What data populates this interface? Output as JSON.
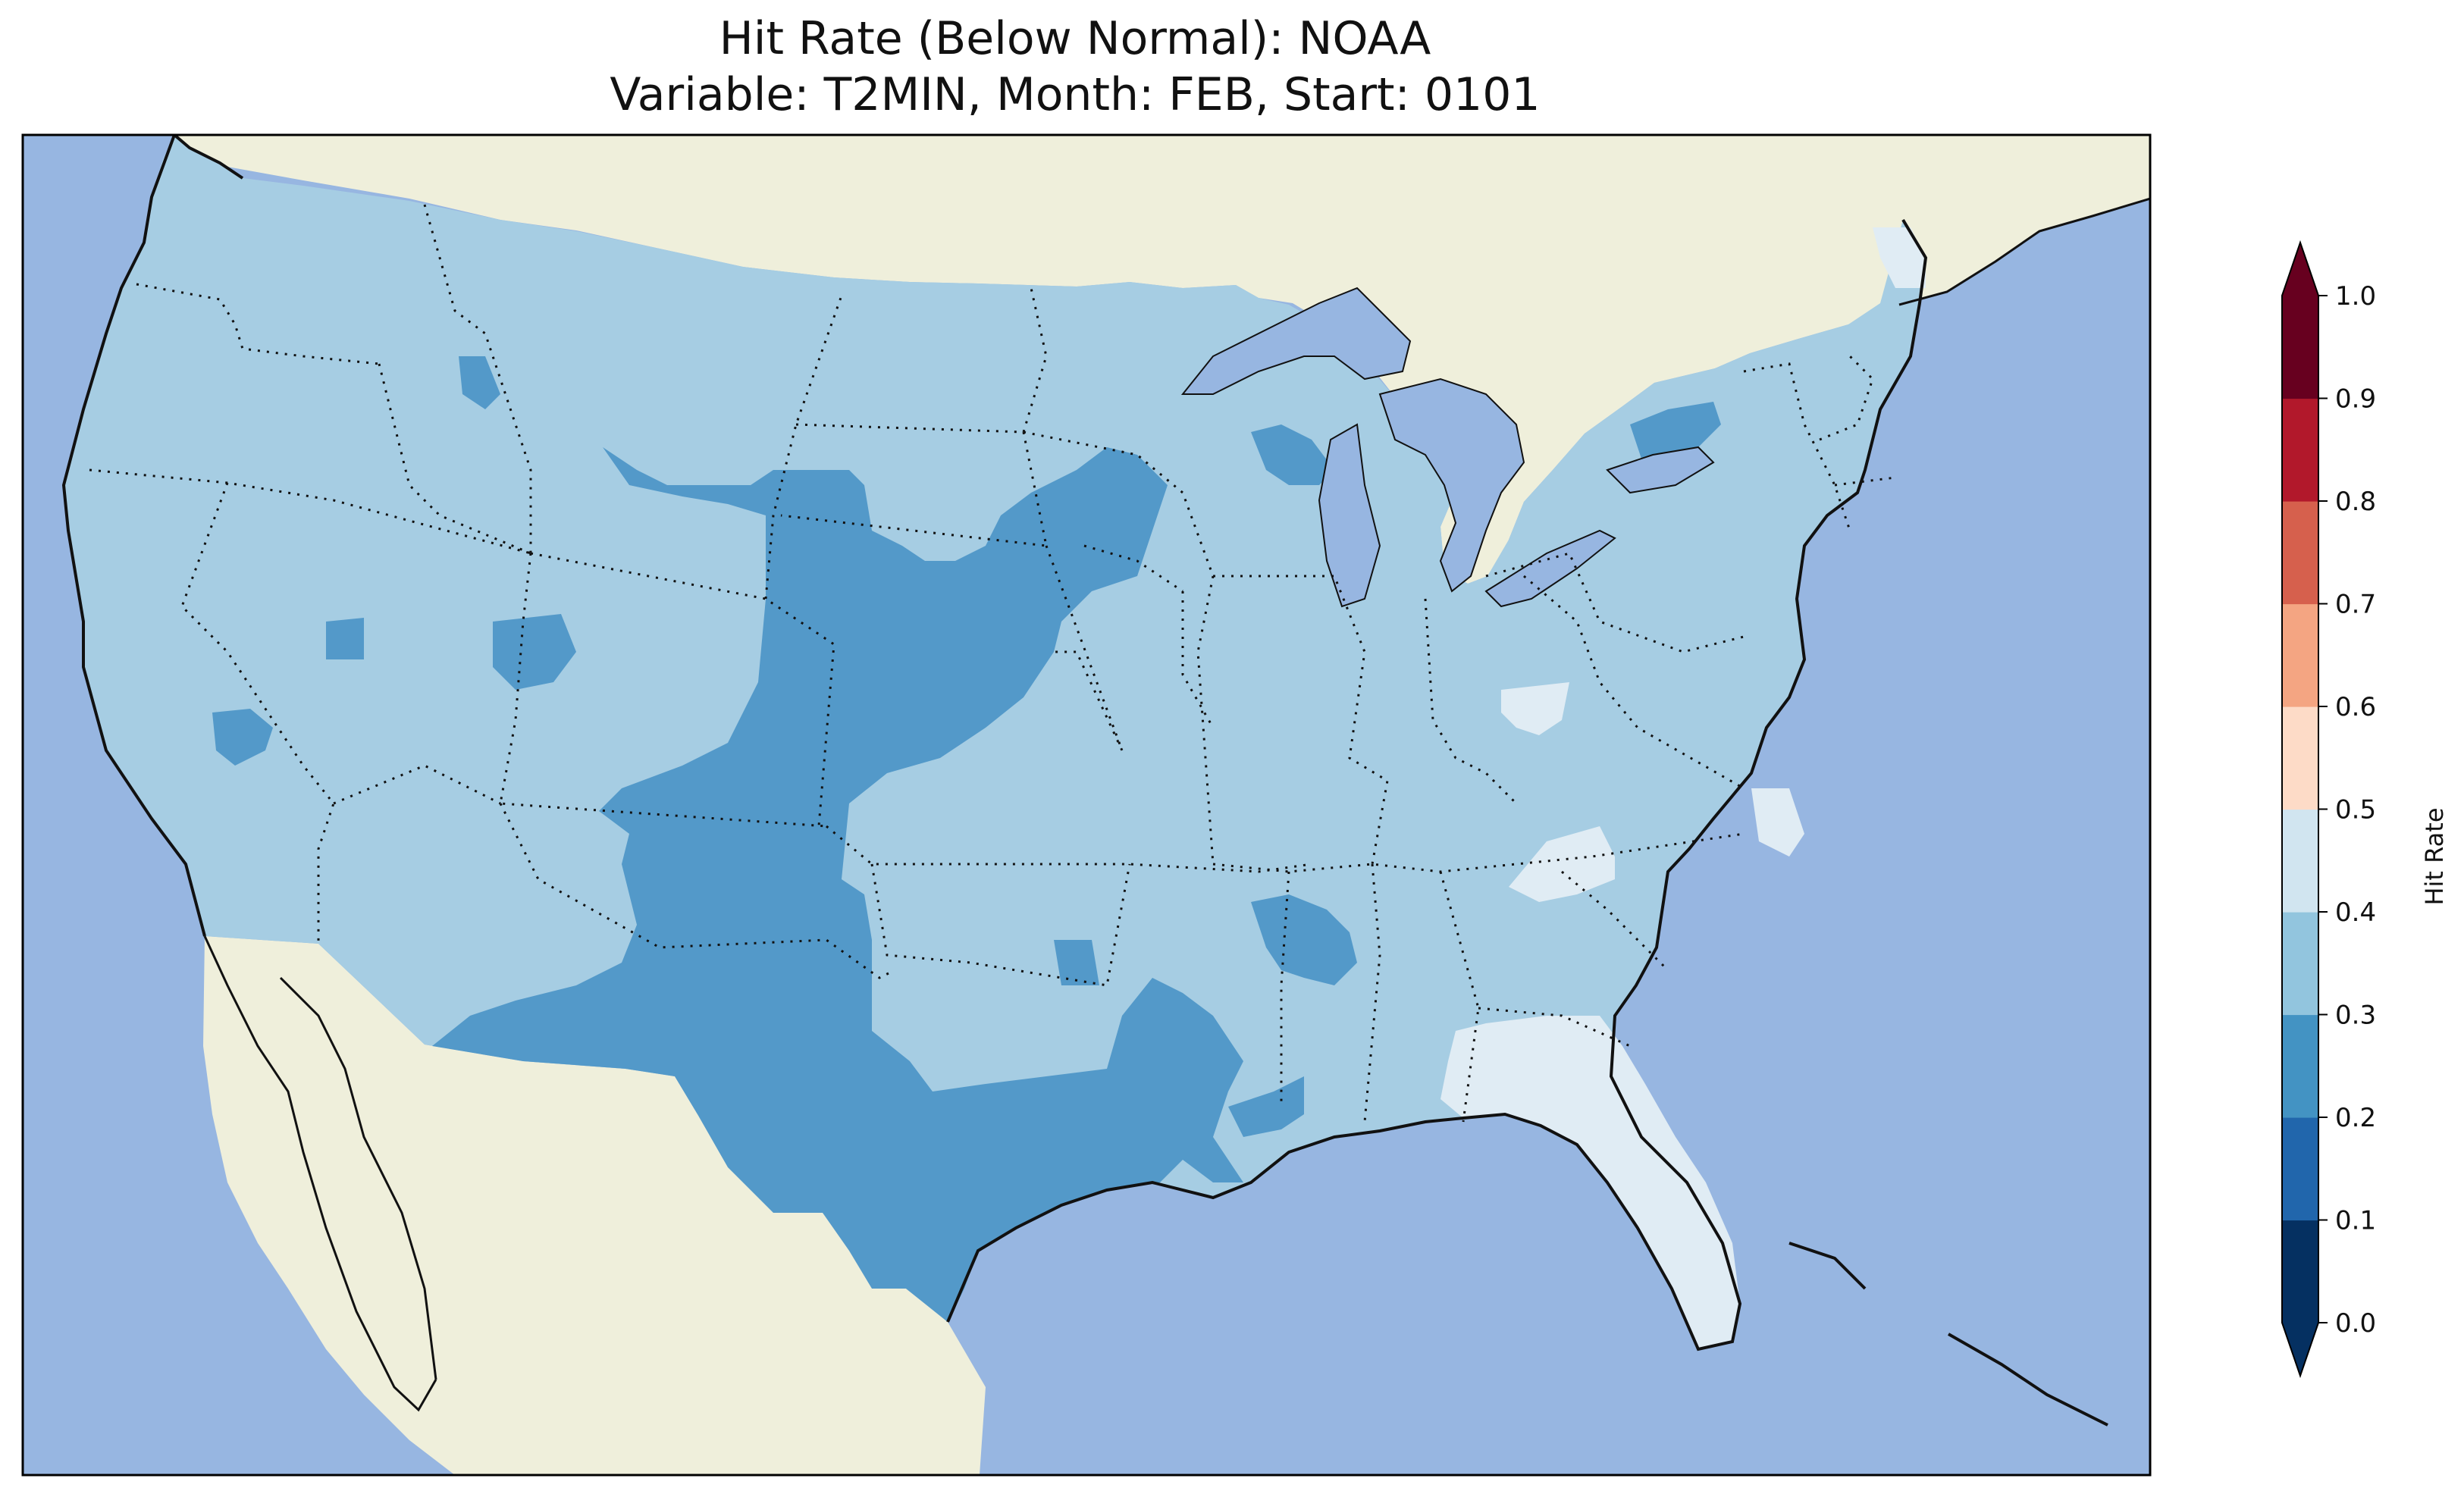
{
  "title": {
    "line1": "Hit Rate (Below Normal): NOAA",
    "line2": "Variable: T2MIN, Month: FEB, Start: 0101"
  },
  "map": {
    "ocean_color": "#97b6e1",
    "land_color": "#efefdb",
    "region": "Contiguous United States",
    "legend_categories": [
      {
        "range": "0.2-0.3",
        "color": "#5399c9"
      },
      {
        "range": "0.3-0.4",
        "color": "#a6cde3"
      },
      {
        "range": "0.4-0.5",
        "color": "#e0ecf4"
      }
    ]
  },
  "colorbar": {
    "label": "Hit Rate",
    "ticks": [
      "0.0",
      "0.1",
      "0.2",
      "0.3",
      "0.4",
      "0.5",
      "0.6",
      "0.7",
      "0.8",
      "0.9",
      "1.0"
    ],
    "colors": [
      "#053061",
      "#2166ac",
      "#4393c3",
      "#92c5de",
      "#d1e5f0",
      "#fddbc7",
      "#f4a582",
      "#d6604d",
      "#b2182b",
      "#67001f"
    ],
    "under_color": "#053061",
    "over_color": "#67001f"
  }
}
